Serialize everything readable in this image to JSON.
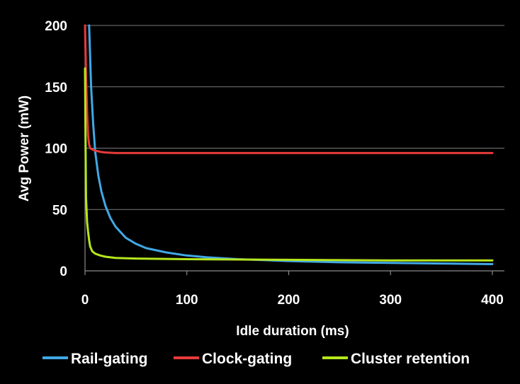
{
  "chart_data": {
    "type": "line",
    "title": "",
    "xlabel": "Idle duration (ms)",
    "ylabel": "Avg Power (mW)",
    "xlim": [
      0,
      400
    ],
    "ylim": [
      0,
      200
    ],
    "xticks": [
      "0",
      "100",
      "200",
      "300",
      "400"
    ],
    "yticks": [
      "0",
      "50",
      "100",
      "150",
      "200"
    ],
    "grid": "horizontal",
    "legend_position": "bottom",
    "series": [
      {
        "name": "Rail-gating",
        "color": "#41a8e6",
        "x": [
          4,
          5,
          6,
          8,
          10,
          13,
          16,
          20,
          25,
          30,
          40,
          50,
          60,
          80,
          100,
          120,
          150,
          200,
          250,
          300,
          350,
          400
        ],
        "y": [
          200,
          175,
          150,
          120,
          97,
          78,
          65,
          53,
          43,
          36,
          27,
          22,
          18.5,
          15,
          12.5,
          11,
          9.5,
          8,
          7,
          6.5,
          6,
          5.5
        ]
      },
      {
        "name": "Clock-gating",
        "color": "#e83a3a",
        "x": [
          0,
          1,
          2,
          3,
          4,
          5,
          7,
          10,
          15,
          20,
          30,
          50,
          100,
          150,
          200,
          250,
          300,
          350,
          400
        ],
        "y": [
          200,
          160,
          130,
          110,
          103,
          100,
          99,
          98,
          97,
          96.5,
          96,
          96,
          96,
          96,
          96,
          96,
          96,
          96,
          96
        ]
      },
      {
        "name": "Cluster retention",
        "color": "#b5e61d",
        "x": [
          0,
          0.5,
          1,
          2,
          3,
          4,
          5,
          7,
          10,
          15,
          20,
          30,
          50,
          100,
          200,
          300,
          400
        ],
        "y": [
          165,
          110,
          60,
          40,
          32,
          25,
          20,
          16,
          14,
          12.5,
          11.5,
          10.5,
          10,
          9.5,
          9,
          8.5,
          8.5
        ]
      }
    ]
  }
}
